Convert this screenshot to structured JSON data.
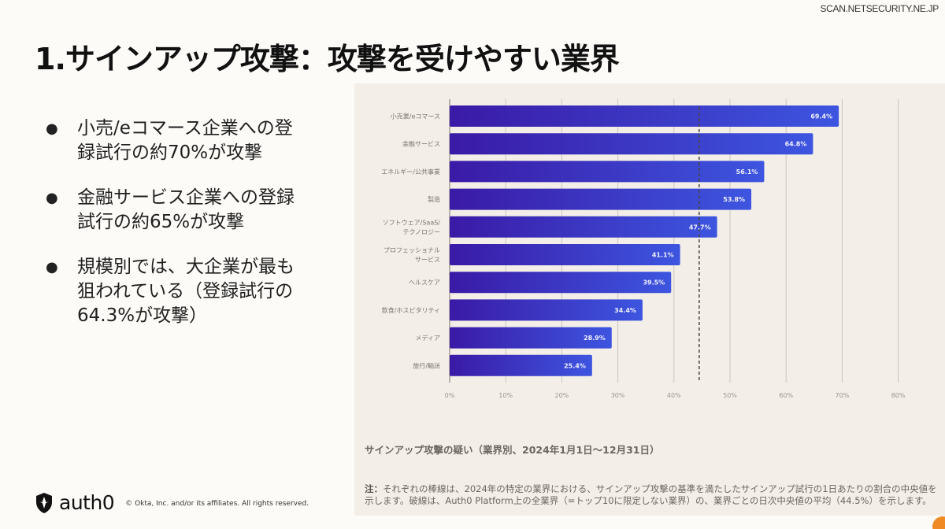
{
  "watermark": "SCAN.NETSECURITY.NE.JP",
  "title": "1.サインアップ攻撃：攻撃を受けやすい業界",
  "bullets": [
    "小売/eコマース企業への登録試行の約70%が攻撃",
    "金融サービス企業への登録試行の約65%が攻撃",
    "規模別では、大企業が最も狙われている（登録試行の64.3%が攻撃）"
  ],
  "bullet_symbol": "●",
  "chart_caption": "サインアップ攻撃の疑い（業界別、2024年1月1日〜12月31日）",
  "chart_note_prefix": "注：",
  "chart_note": "それぞれの棒線は、2024年の特定の業界における、サインアップ攻撃の基準を満たしたサインアップ試行の1日あたりの割合の中央値を示します。破線は、Auth0 Platform上の全業界（=トップ10に限定しない業界）の、業界ごとの日次中央値の平均（44.5%）を示します。",
  "footer": {
    "logo_text": "auth0",
    "copyright": "© Okta, Inc. and/or its affiliates. All rights reserved."
  },
  "colors": {
    "bar_start": "#3a1aa6",
    "bar_end": "#3d55e0",
    "panel_bg": "#f3efe8",
    "accent_orange": "#f08a24"
  },
  "chart_data": {
    "type": "bar",
    "orientation": "horizontal",
    "title": "サインアップ攻撃の疑い（業界別、2024年1月1日〜12月31日）",
    "categories": [
      [
        "小売業/eコマース"
      ],
      [
        "金融サービス"
      ],
      [
        "エネルギー/公共事業"
      ],
      [
        "製造"
      ],
      [
        "ソフトウェア/SaaS/",
        "テクノロジー"
      ],
      [
        "プロフェッショナル",
        "サービス"
      ],
      [
        "ヘルスケア"
      ],
      [
        "飲食/ホスピタリティ"
      ],
      [
        "メディア"
      ],
      [
        "旅行/輸送"
      ]
    ],
    "values": [
      69.4,
      64.8,
      56.1,
      53.8,
      47.7,
      41.1,
      39.5,
      34.4,
      28.9,
      25.4
    ],
    "value_labels": [
      "69.4%",
      "64.8%",
      "56.1%",
      "53.8%",
      "47.7%",
      "41.1%",
      "39.5%",
      "34.4%",
      "28.9%",
      "25.4%"
    ],
    "xlim": [
      0,
      80
    ],
    "xticks": [
      0,
      10,
      20,
      30,
      40,
      50,
      60,
      70,
      80
    ],
    "xtick_labels": [
      "0%",
      "10%",
      "20%",
      "30%",
      "40%",
      "50%",
      "60%",
      "70%",
      "80%"
    ],
    "reference_line": {
      "value": 44.5,
      "style": "dashed",
      "label": "全業界平均 44.5%"
    },
    "grid": true,
    "legend": "none",
    "xlabel": "",
    "ylabel": ""
  }
}
